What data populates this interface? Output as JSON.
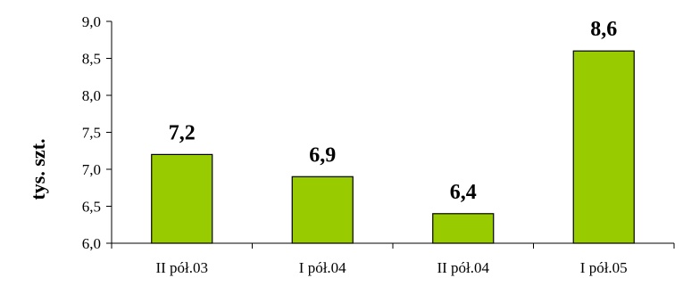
{
  "chart_data": {
    "type": "bar",
    "title": "",
    "xlabel": "",
    "ylabel": "tys. szt.",
    "categories": [
      "II pół.03",
      "I pół.04",
      "II pół.04",
      "I pół.05"
    ],
    "values": [
      7.2,
      6.9,
      6.4,
      8.6
    ],
    "value_labels": [
      "7,2",
      "6,9",
      "6,4",
      "8,6"
    ],
    "ylim": [
      6.0,
      9.0
    ],
    "yticks": [
      6.0,
      6.5,
      7.0,
      7.5,
      8.0,
      8.5,
      9.0
    ],
    "ytick_labels": [
      "6,0",
      "6,5",
      "7,0",
      "7,5",
      "8,0",
      "8,5",
      "9,0"
    ],
    "grid": false,
    "legend": "none",
    "colors": {
      "bar_fill": "#99cc00",
      "bar_stroke": "#000000",
      "axis": "#000000"
    }
  }
}
